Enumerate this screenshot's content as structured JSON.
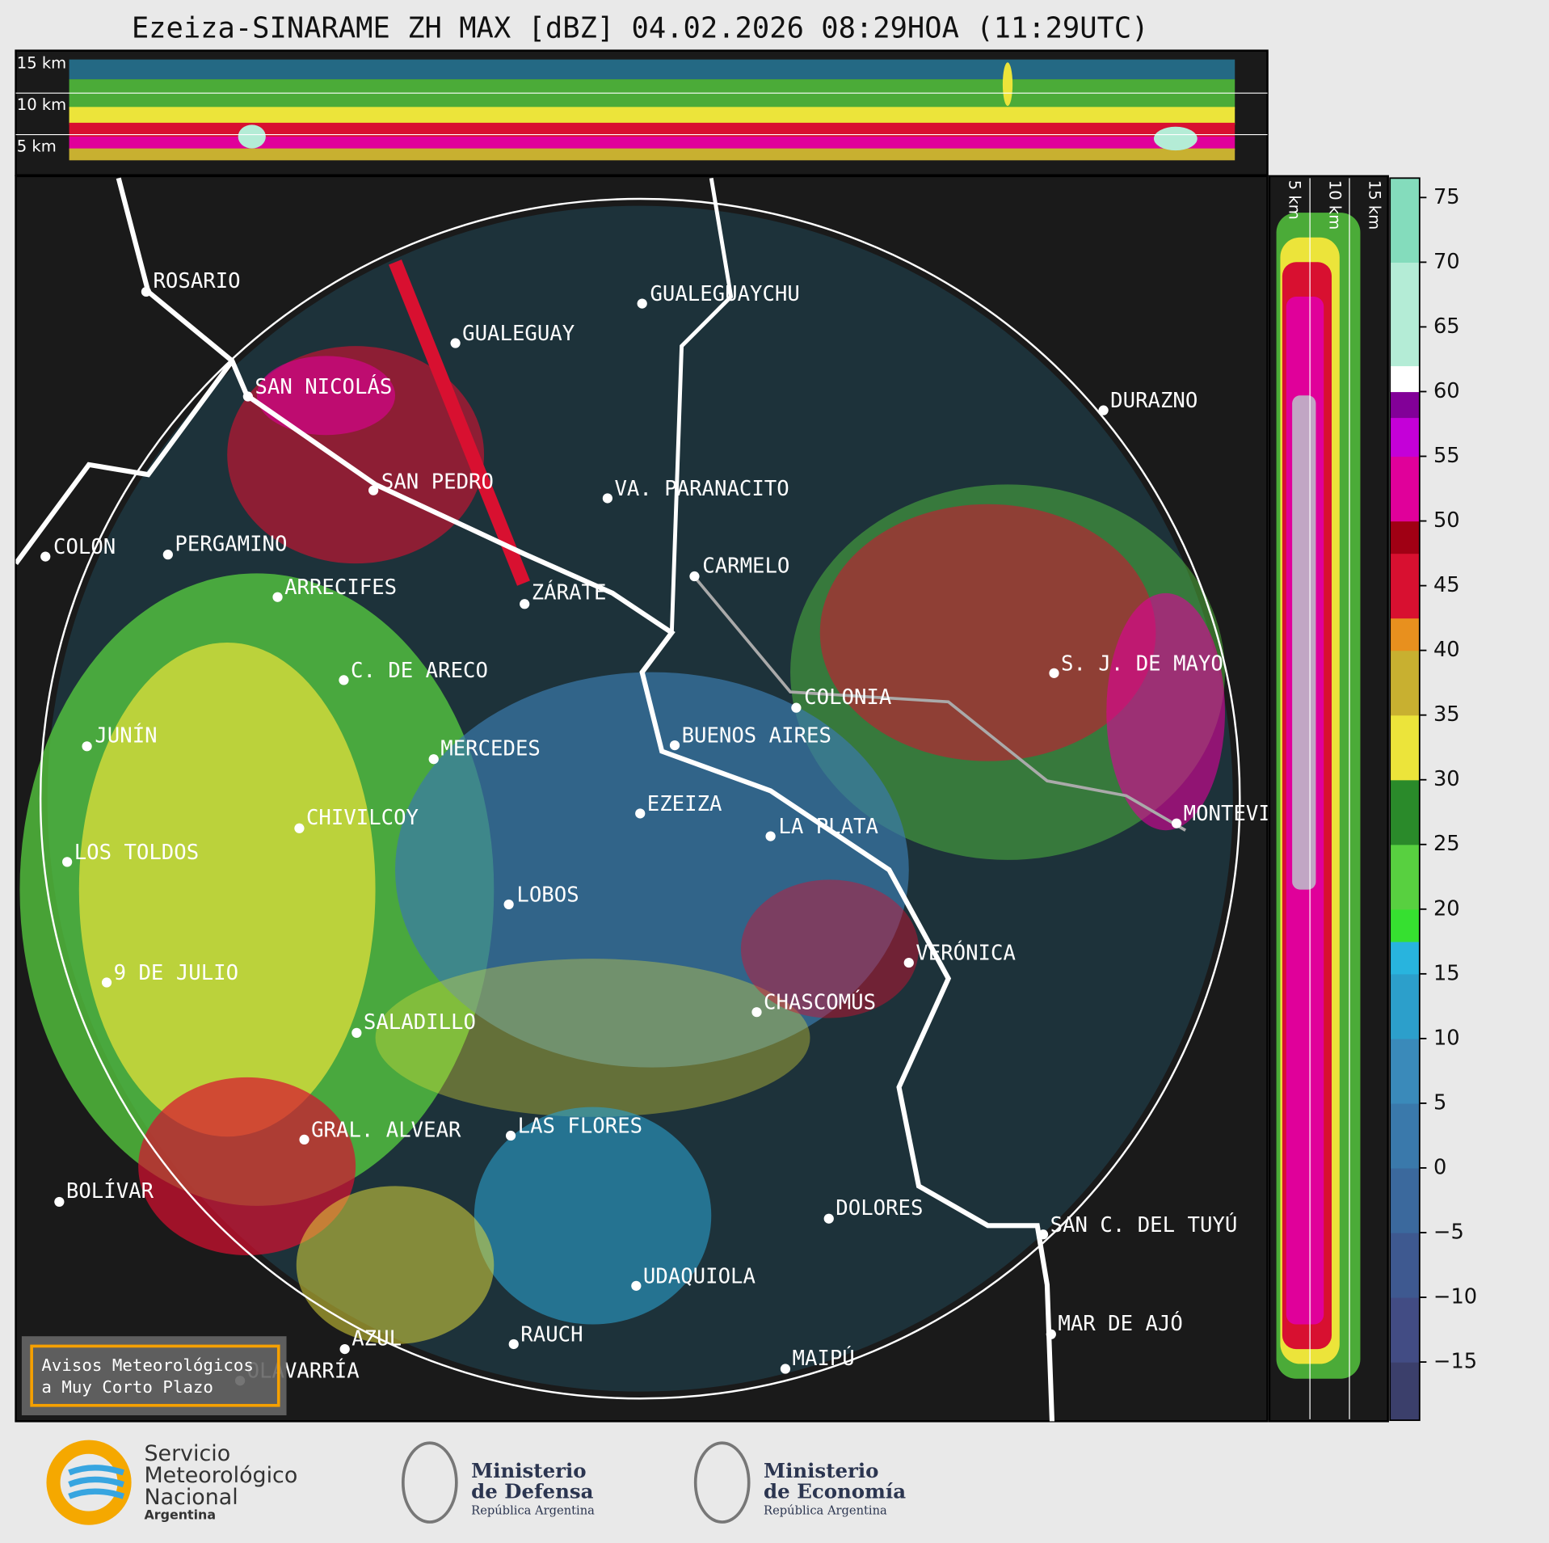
{
  "title": "Ezeiza-SINARAME ZH MAX [dBZ] 04.02.2026 08:29HOA (11:29UTC)",
  "altitude_labels": [
    "15 km",
    "10 km",
    "5 km"
  ],
  "cities": [
    "ROSARIO",
    "GUALEGUAYCHU",
    "GUALEGUAY",
    "SAN NICOLÁS",
    "DURAZNO",
    "SAN PEDRO",
    "VA. PARANACITO",
    "COLON",
    "PERGAMINO",
    "CARMELO",
    "ZÁRATE",
    "ARRECIFES",
    "S. J. DE MAYO",
    "C. DE ARECO",
    "COLONIA",
    "JUNÍN",
    "BUENOS AIRES",
    "MERCEDES",
    "MONTEVIDEO",
    "EZEIZA",
    "CHIVILCOY",
    "LA PLATA",
    "LOS TOLDOS",
    "LOBOS",
    "VERÓNICA",
    "9 DE JULIO",
    "CHASCOMÚS",
    "SALADILLO",
    "GRAL. ALVEAR",
    "LAS FLORES",
    "BOLÍVAR",
    "DOLORES",
    "SAN C. DEL TUYÚ",
    "UDAQUIOLA",
    "RAUCH",
    "AZUL",
    "MAR DE AJÓ",
    "OLAVARRÍA",
    "MAIPÚ"
  ],
  "colorbar": {
    "lim": [
      -19.5,
      76.5
    ],
    "ticks": [
      75,
      70,
      65,
      60,
      55,
      50,
      45,
      40,
      35,
      30,
      25,
      20,
      15,
      10,
      5,
      0,
      {
        "value": -5,
        "label": "−5"
      },
      {
        "value": -10,
        "label": "−10"
      },
      {
        "value": -15,
        "label": "−15"
      }
    ],
    "levels": [
      -19.5,
      -15,
      -10,
      -5,
      0,
      5,
      10,
      15,
      17.5,
      20,
      25,
      30,
      35,
      40,
      42.5,
      47.5,
      50,
      55,
      58,
      60,
      62,
      70,
      76.5
    ],
    "colors": [
      "#3b3f6b",
      "#424c84",
      "#3e5990",
      "#3b699d",
      "#3a79ab",
      "#3a8aba",
      "#2c9fcb",
      "#28b4de",
      "#36e030",
      "#58d040",
      "#2a8a2a",
      "#ece43a",
      "#c8b030",
      "#e8901e",
      "#d81030",
      "#a00014",
      "#e0009a",
      "#c400d8",
      "#820098",
      "#ffffff",
      "#b4ecd6",
      "#84dcbc"
    ]
  },
  "warning_box": [
    "Avisos Meteorológicos",
    "a Muy Corto Plazo"
  ],
  "logos": {
    "smn": [
      "Servicio",
      "Meteorológico",
      "Nacional",
      "Argentina"
    ],
    "defensa": [
      "Ministerio",
      "de Defensa",
      "República Argentina"
    ],
    "economia": [
      "Ministerio",
      "de Economía",
      "República Argentina"
    ]
  }
}
